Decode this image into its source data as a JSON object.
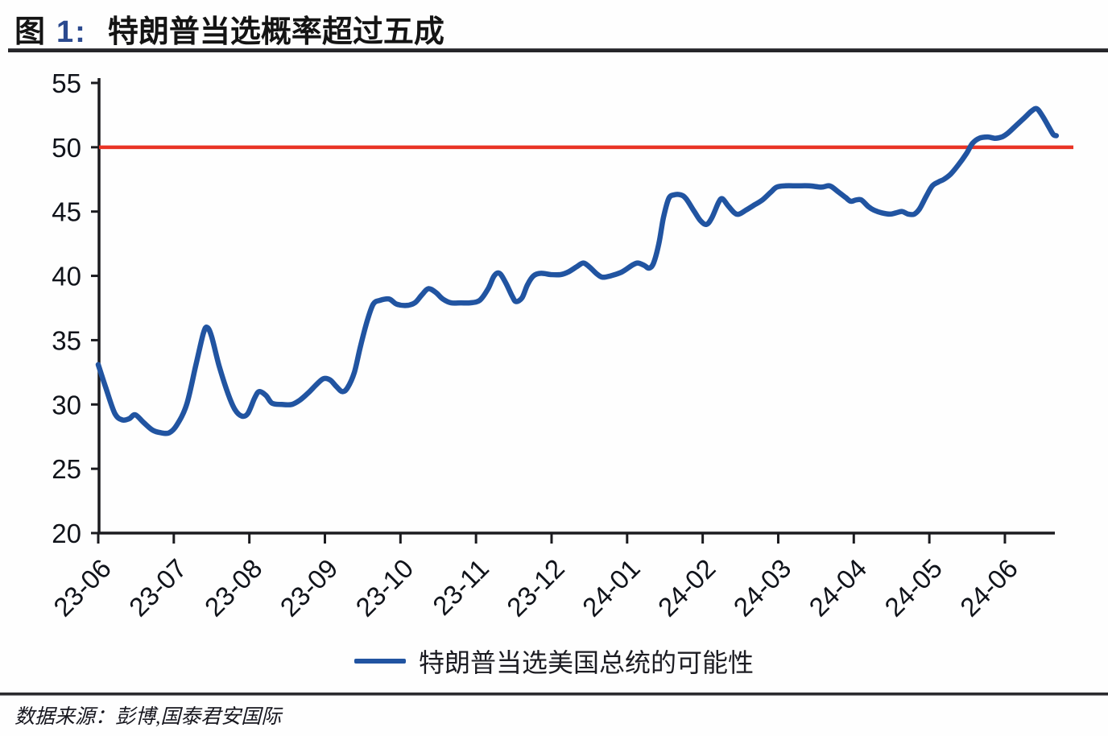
{
  "header": {
    "figure_label": "图",
    "figure_number": "1:",
    "title": "特朗普当选概率超过五成"
  },
  "legend": {
    "label": "特朗普当选美国总统的可能性"
  },
  "footer": {
    "text": "数据来源：彭博,国泰君安国际"
  },
  "colors": {
    "line": "#2154A1",
    "threshold": "#E93425",
    "axis": "#1b1b1f",
    "tick_label": "#10131a",
    "figure_number": "#2B4A8F"
  },
  "chart_data": {
    "type": "line",
    "title": "特朗普当选概率超过五成",
    "xlabel": "",
    "ylabel": "",
    "ylim": [
      20,
      55
    ],
    "yticks": [
      20,
      25,
      30,
      35,
      40,
      45,
      50,
      55
    ],
    "x_tick_labels": [
      "23-06",
      "23-07",
      "23-08",
      "23-09",
      "23-10",
      "23-11",
      "23-12",
      "24-01",
      "24-02",
      "24-03",
      "24-04",
      "24-05",
      "24-06"
    ],
    "x_encoding": "months after 2023-06 (0 = 23-06 tick)",
    "grid": false,
    "legend_position": "bottom-center",
    "threshold": {
      "value": 50,
      "color": "#E93425"
    },
    "series": [
      {
        "name": "特朗普当选美国总统的可能性",
        "color": "#2154A1",
        "points": [
          [
            0,
            33.1
          ],
          [
            0.1,
            31.3
          ],
          [
            0.22,
            29.3
          ],
          [
            0.32,
            28.8
          ],
          [
            0.41,
            28.9
          ],
          [
            0.49,
            29.2
          ],
          [
            0.6,
            28.6
          ],
          [
            0.72,
            28.0
          ],
          [
            0.83,
            27.8
          ],
          [
            0.94,
            27.8
          ],
          [
            1.04,
            28.4
          ],
          [
            1.17,
            30.0
          ],
          [
            1.29,
            33.0
          ],
          [
            1.39,
            35.5
          ],
          [
            1.44,
            36.0
          ],
          [
            1.5,
            35.3
          ],
          [
            1.6,
            33.0
          ],
          [
            1.72,
            30.8
          ],
          [
            1.81,
            29.6
          ],
          [
            1.9,
            29.1
          ],
          [
            1.98,
            29.3
          ],
          [
            2.07,
            30.5
          ],
          [
            2.13,
            31.0
          ],
          [
            2.22,
            30.7
          ],
          [
            2.3,
            30.1
          ],
          [
            2.43,
            30.0
          ],
          [
            2.56,
            30.0
          ],
          [
            2.66,
            30.3
          ],
          [
            2.78,
            30.9
          ],
          [
            2.88,
            31.5
          ],
          [
            2.98,
            32.0
          ],
          [
            3.07,
            31.9
          ],
          [
            3.15,
            31.4
          ],
          [
            3.23,
            31.0
          ],
          [
            3.3,
            31.3
          ],
          [
            3.39,
            32.5
          ],
          [
            3.47,
            34.5
          ],
          [
            3.56,
            36.5
          ],
          [
            3.64,
            37.8
          ],
          [
            3.73,
            38.1
          ],
          [
            3.85,
            38.2
          ],
          [
            3.95,
            37.8
          ],
          [
            4.08,
            37.7
          ],
          [
            4.19,
            37.9
          ],
          [
            4.28,
            38.5
          ],
          [
            4.37,
            39.0
          ],
          [
            4.47,
            38.7
          ],
          [
            4.56,
            38.2
          ],
          [
            4.67,
            37.9
          ],
          [
            4.8,
            37.9
          ],
          [
            4.92,
            37.9
          ],
          [
            5.05,
            38.1
          ],
          [
            5.16,
            39.0
          ],
          [
            5.24,
            40.0
          ],
          [
            5.31,
            40.2
          ],
          [
            5.39,
            39.5
          ],
          [
            5.48,
            38.4
          ],
          [
            5.53,
            38.0
          ],
          [
            5.61,
            38.3
          ],
          [
            5.68,
            39.3
          ],
          [
            5.76,
            40.0
          ],
          [
            5.86,
            40.2
          ],
          [
            5.99,
            40.1
          ],
          [
            6.12,
            40.1
          ],
          [
            6.22,
            40.3
          ],
          [
            6.33,
            40.7
          ],
          [
            6.42,
            41.0
          ],
          [
            6.5,
            40.7
          ],
          [
            6.59,
            40.2
          ],
          [
            6.67,
            39.9
          ],
          [
            6.78,
            40.0
          ],
          [
            6.93,
            40.3
          ],
          [
            7.06,
            40.8
          ],
          [
            7.14,
            41.0
          ],
          [
            7.23,
            40.8
          ],
          [
            7.29,
            40.6
          ],
          [
            7.35,
            41.0
          ],
          [
            7.42,
            42.5
          ],
          [
            7.48,
            44.5
          ],
          [
            7.55,
            46.0
          ],
          [
            7.62,
            46.3
          ],
          [
            7.71,
            46.3
          ],
          [
            7.78,
            46.0
          ],
          [
            7.89,
            45.0
          ],
          [
            7.97,
            44.3
          ],
          [
            8.05,
            44.0
          ],
          [
            8.12,
            44.5
          ],
          [
            8.21,
            45.7
          ],
          [
            8.26,
            46.0
          ],
          [
            8.33,
            45.5
          ],
          [
            8.42,
            44.9
          ],
          [
            8.48,
            44.8
          ],
          [
            8.57,
            45.1
          ],
          [
            8.68,
            45.5
          ],
          [
            8.79,
            45.9
          ],
          [
            8.9,
            46.5
          ],
          [
            8.98,
            46.9
          ],
          [
            9.09,
            47.0
          ],
          [
            9.25,
            47.0
          ],
          [
            9.41,
            47.0
          ],
          [
            9.57,
            46.9
          ],
          [
            9.68,
            47.0
          ],
          [
            9.78,
            46.6
          ],
          [
            9.89,
            46.1
          ],
          [
            9.96,
            45.8
          ],
          [
            10.03,
            45.9
          ],
          [
            10.1,
            45.9
          ],
          [
            10.19,
            45.4
          ],
          [
            10.27,
            45.1
          ],
          [
            10.37,
            44.9
          ],
          [
            10.48,
            44.8
          ],
          [
            10.56,
            44.9
          ],
          [
            10.64,
            45.0
          ],
          [
            10.72,
            44.8
          ],
          [
            10.8,
            44.8
          ],
          [
            10.87,
            45.2
          ],
          [
            10.96,
            46.2
          ],
          [
            11.04,
            47.0
          ],
          [
            11.12,
            47.3
          ],
          [
            11.19,
            47.5
          ],
          [
            11.28,
            47.9
          ],
          [
            11.38,
            48.6
          ],
          [
            11.49,
            49.5
          ],
          [
            11.57,
            50.3
          ],
          [
            11.66,
            50.7
          ],
          [
            11.77,
            50.8
          ],
          [
            11.87,
            50.7
          ],
          [
            11.96,
            50.8
          ],
          [
            12.04,
            51.1
          ],
          [
            12.15,
            51.7
          ],
          [
            12.26,
            52.3
          ],
          [
            12.35,
            52.8
          ],
          [
            12.42,
            53.0
          ],
          [
            12.49,
            52.5
          ],
          [
            12.57,
            51.7
          ],
          [
            12.64,
            51.0
          ],
          [
            12.68,
            50.9
          ]
        ]
      }
    ]
  }
}
